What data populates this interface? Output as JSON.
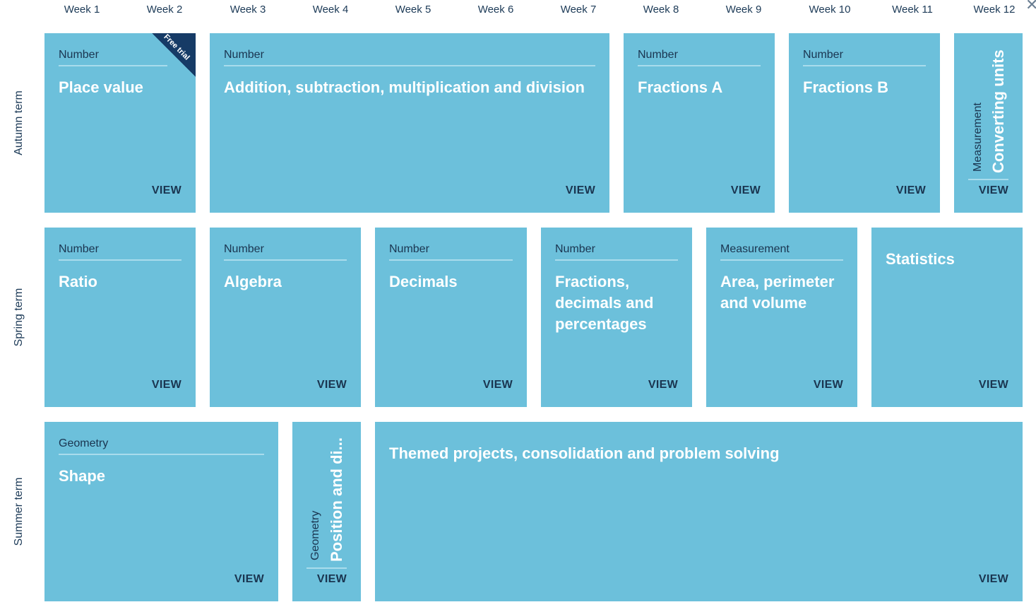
{
  "weeks": [
    "Week 1",
    "Week 2",
    "Week 3",
    "Week 4",
    "Week 5",
    "Week 6",
    "Week 7",
    "Week 8",
    "Week 9",
    "Week 10",
    "Week 11",
    "Week 12"
  ],
  "terms": [
    "Autumn term",
    "Spring term",
    "Summer term"
  ],
  "view_label": "VIEW",
  "free_trial_label": "Free trial",
  "close_icon": "close-icon",
  "colors": {
    "card": "#6cc0db",
    "ribbon": "#163b66",
    "text_dark": "#1a3550",
    "title": "#ffffff"
  },
  "autumn": [
    {
      "category": "Number",
      "title": "Place value"
    },
    {
      "category": "Number",
      "title": "Addition, subtraction, multiplication and division"
    },
    {
      "category": "Number",
      "title": "Fractions A"
    },
    {
      "category": "Number",
      "title": "Fractions B"
    },
    {
      "category": "Measurement",
      "title": "Converting units"
    }
  ],
  "spring": [
    {
      "category": "Number",
      "title": "Ratio"
    },
    {
      "category": "Number",
      "title": "Algebra"
    },
    {
      "category": "Number",
      "title": "Decimals"
    },
    {
      "category": "Number",
      "title": "Fractions, decimals and percentages"
    },
    {
      "category": "Measurement",
      "title": "Area, perimeter and volume"
    },
    {
      "category": "",
      "title": "Statistics"
    }
  ],
  "summer": [
    {
      "category": "Geometry",
      "title": "Shape"
    },
    {
      "category": "Geometry",
      "title": "Position and di..."
    },
    {
      "category": "",
      "title": "Themed projects, consolidation and problem solving"
    }
  ]
}
